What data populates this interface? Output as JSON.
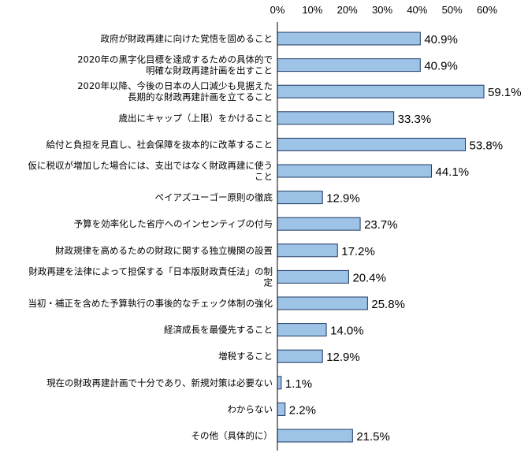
{
  "chart_data": {
    "type": "bar",
    "orientation": "horizontal",
    "xlim": [
      0,
      60
    ],
    "grid": false,
    "bar_color": "#9DC3E6",
    "bar_edge_color": "#1F3864",
    "x_ticks": [
      "0%",
      "10%",
      "20%",
      "30%",
      "40%",
      "50%",
      "60%"
    ],
    "categories": [
      [
        "政府が財政再建に向けた覚悟を固めること"
      ],
      [
        "2020年の黒字化目標を達成するための具体的で",
        "明確な財政再建計画を出すこと"
      ],
      [
        "2020年以降、今後の日本の人口減少も見据えた",
        "長期的な財政再建計画を立てること"
      ],
      [
        "歳出にキャップ（上限）をかけること"
      ],
      [
        "給付と負担を見直し、社会保障を抜本的に改革すること"
      ],
      [
        "仮に税収が増加した場合には、支出ではなく財政再建に使う",
        "こと"
      ],
      [
        "ペイアズユーゴー原則の徹底"
      ],
      [
        "予算を効率化した省庁へのインセンティブの付与"
      ],
      [
        "財政規律を高めるための財政に関する独立機関の設置"
      ],
      [
        "財政再建を法律によって担保する「日本版財政責任法」の制",
        "定"
      ],
      [
        "当初・補正を含めた予算執行の事後的なチェック体制の強化"
      ],
      [
        "経済成長を最優先すること"
      ],
      [
        "増税すること"
      ],
      [
        "現在の財政再建計画で十分であり、新規対策は必要ない"
      ],
      [
        "わからない"
      ],
      [
        "その他（具体的に）"
      ]
    ],
    "values": [
      40.9,
      40.9,
      59.1,
      33.3,
      53.8,
      44.1,
      12.9,
      23.7,
      17.2,
      20.4,
      25.8,
      14.0,
      12.9,
      1.1,
      2.2,
      21.5
    ],
    "value_labels": [
      "40.9%",
      "40.9%",
      "59.1%",
      "33.3%",
      "53.8%",
      "44.1%",
      "12.9%",
      "23.7%",
      "17.2%",
      "20.4%",
      "25.8%",
      "14.0%",
      "12.9%",
      "1.1%",
      "2.2%",
      "21.5%"
    ]
  }
}
